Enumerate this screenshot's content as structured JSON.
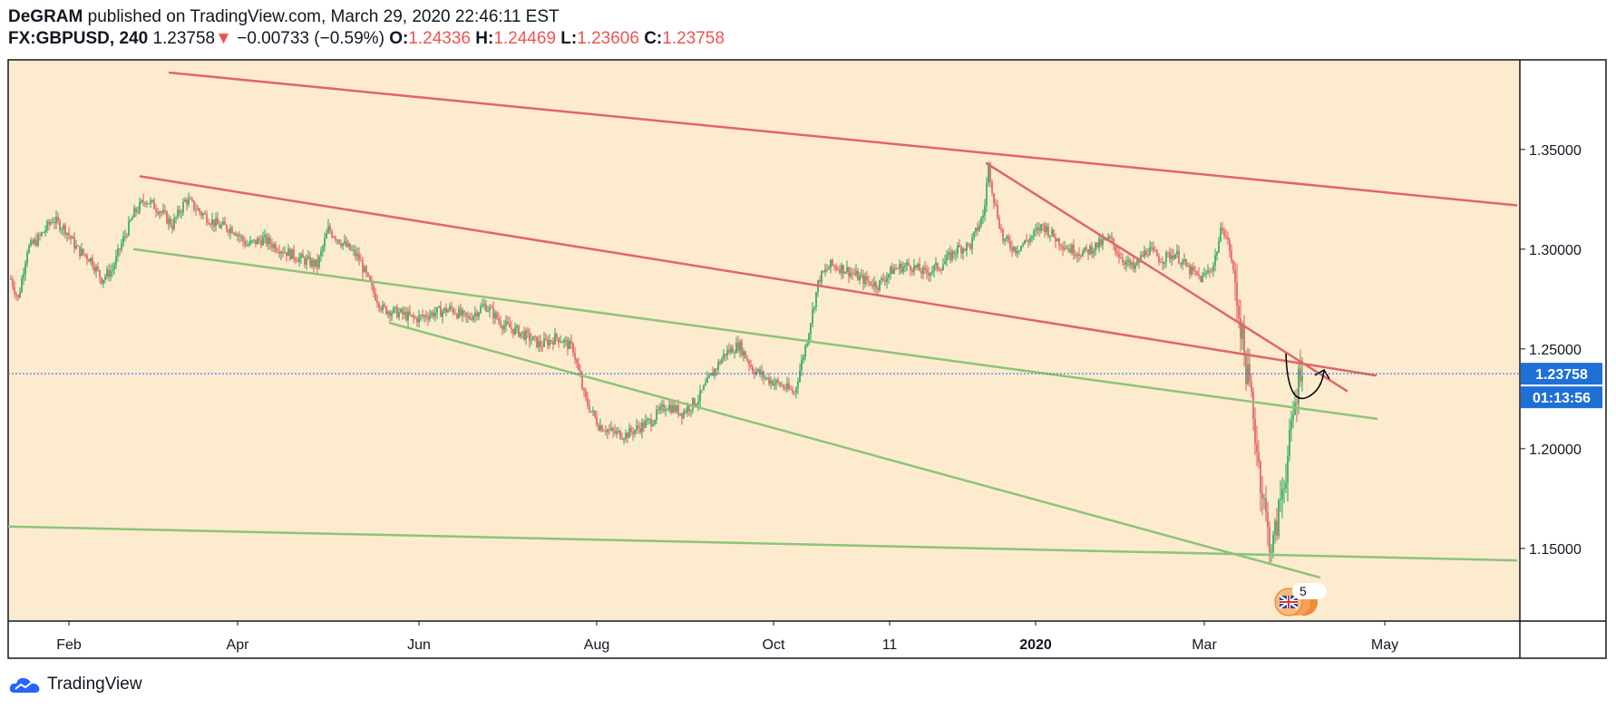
{
  "header": {
    "author": "DeGRAM",
    "published_text": "published on TradingView.com, March 29, 2020 22:46:11 EST",
    "symbol": "FX:GBPUSD, 240",
    "last": "1.23758",
    "change_arrow": "▼",
    "change": "−0.00733 (−0.59%)",
    "open_label": "O:",
    "open": "1.24336",
    "high_label": "H:",
    "high": "1.24469",
    "low_label": "L:",
    "low": "1.23606",
    "close_label": "C:",
    "close": "1.23758"
  },
  "footer": {
    "brand": "TradingView"
  },
  "colors": {
    "background": "#fcebcf",
    "up": "#26a65b",
    "down": "#e05a5a",
    "resistance": "#e06666",
    "support": "#8cc47a",
    "price_label": "#1e6fd6"
  },
  "chart_data": {
    "type": "candlestick",
    "x_tick_labels": [
      "Feb",
      "Apr",
      "Jun",
      "Aug",
      "Oct",
      "11",
      "2020",
      "Mar",
      "May"
    ],
    "y_tick_labels": [
      "1.35000",
      "1.30000",
      "1.25000",
      "1.20000",
      "1.15000"
    ],
    "y_ticks": [
      1.35,
      1.3,
      1.25,
      1.2,
      1.15
    ],
    "ylim": [
      1.1136,
      1.3949
    ],
    "current_price_label": "1.23758",
    "countdown_label": "01:13:56",
    "current_price": 1.23758,
    "event_badge_count": "5",
    "event_icon": "uk-flag-icon",
    "price_path_monthly": [
      [
        "Jan",
        1.29
      ],
      [
        "Feb",
        1.31
      ],
      [
        "Mar",
        1.33
      ],
      [
        "Apr",
        1.3
      ],
      [
        "May",
        1.28
      ],
      [
        "Jun",
        1.265
      ],
      [
        "Jul",
        1.25
      ],
      [
        "Aug",
        1.215
      ],
      [
        "Sep",
        1.235
      ],
      [
        "Oct",
        1.29
      ],
      [
        "Nov",
        1.29
      ],
      [
        "Dec",
        1.32
      ],
      [
        "Jan",
        1.305
      ],
      [
        "Feb",
        1.295
      ],
      [
        "Mar",
        1.2376
      ]
    ],
    "annotations": [
      {
        "type": "trendline",
        "color": "resistance",
        "name": "upper-resistance-line"
      },
      {
        "type": "trendline",
        "color": "resistance",
        "name": "middle-resistance-line"
      },
      {
        "type": "trendline",
        "color": "resistance",
        "name": "short-resistance-line"
      },
      {
        "type": "trendline",
        "color": "support",
        "name": "upper-support-line"
      },
      {
        "type": "trendline",
        "color": "support",
        "name": "lower-support-line"
      },
      {
        "type": "trendline",
        "color": "support",
        "name": "long-support-line"
      },
      {
        "type": "arrow",
        "color": "#000000",
        "name": "forecast-arrow"
      }
    ]
  }
}
